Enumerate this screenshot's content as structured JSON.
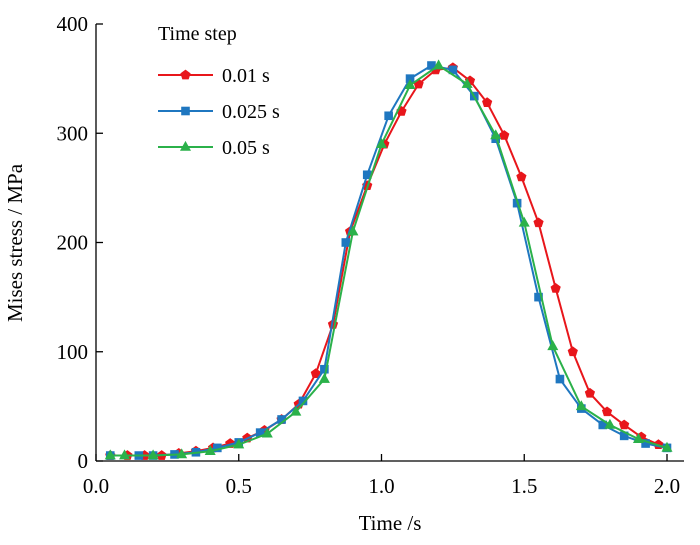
{
  "chart_data": {
    "type": "line",
    "xlabel": "Time /s",
    "ylabel": "Mises stress / MPa",
    "xlim": [
      0.0,
      2.0
    ],
    "ylim": [
      0,
      400
    ],
    "xticks": [
      0.0,
      0.5,
      1.0,
      1.5,
      2.0
    ],
    "xtick_labels": [
      "0.0",
      "0.5",
      "1.0",
      "1.5",
      "2.0"
    ],
    "yticks": [
      0,
      100,
      200,
      300,
      400
    ],
    "ytick_labels": [
      "0",
      "100",
      "200",
      "300",
      "400"
    ],
    "grid": false,
    "legend": {
      "title": "Time step",
      "position": "top-left"
    },
    "series": [
      {
        "name": "0.01 s",
        "color": "#e8161b",
        "marker": "pentagon",
        "x": [
          0.05,
          0.11,
          0.17,
          0.23,
          0.29,
          0.35,
          0.41,
          0.47,
          0.53,
          0.59,
          0.65,
          0.71,
          0.77,
          0.83,
          0.89,
          0.95,
          1.01,
          1.07,
          1.13,
          1.19,
          1.25,
          1.31,
          1.37,
          1.43,
          1.49,
          1.55,
          1.61,
          1.67,
          1.73,
          1.79,
          1.85,
          1.91,
          1.97
        ],
        "y": [
          5,
          5,
          5,
          5,
          7,
          9,
          12,
          16,
          21,
          28,
          38,
          52,
          80,
          125,
          210,
          252,
          290,
          320,
          345,
          358,
          360,
          348,
          328,
          298,
          260,
          218,
          158,
          100,
          62,
          45,
          33,
          22,
          15
        ]
      },
      {
        "name": "0.025 s",
        "color": "#1f77c0",
        "marker": "square",
        "x": [
          0.05,
          0.15,
          0.2,
          0.275,
          0.35,
          0.425,
          0.5,
          0.575,
          0.65,
          0.725,
          0.8,
          0.875,
          0.95,
          1.025,
          1.1,
          1.175,
          1.25,
          1.325,
          1.4,
          1.475,
          1.55,
          1.625,
          1.7,
          1.775,
          1.85,
          1.925,
          2.0
        ],
        "y": [
          5,
          5,
          5,
          6,
          8,
          12,
          17,
          26,
          38,
          55,
          84,
          200,
          262,
          316,
          350,
          362,
          358,
          334,
          295,
          236,
          150,
          75,
          48,
          33,
          23,
          16,
          12
        ]
      },
      {
        "name": "0.05 s",
        "color": "#2bb14a",
        "marker": "triangle",
        "x": [
          0.05,
          0.1,
          0.2,
          0.3,
          0.4,
          0.5,
          0.6,
          0.7,
          0.8,
          0.9,
          1.0,
          1.1,
          1.2,
          1.3,
          1.4,
          1.5,
          1.6,
          1.7,
          1.8,
          1.9,
          2.0
        ],
        "y": [
          5,
          5,
          5,
          6,
          9,
          15,
          25,
          45,
          75,
          210,
          290,
          344,
          362,
          345,
          298,
          218,
          105,
          50,
          33,
          20,
          12
        ]
      }
    ]
  }
}
